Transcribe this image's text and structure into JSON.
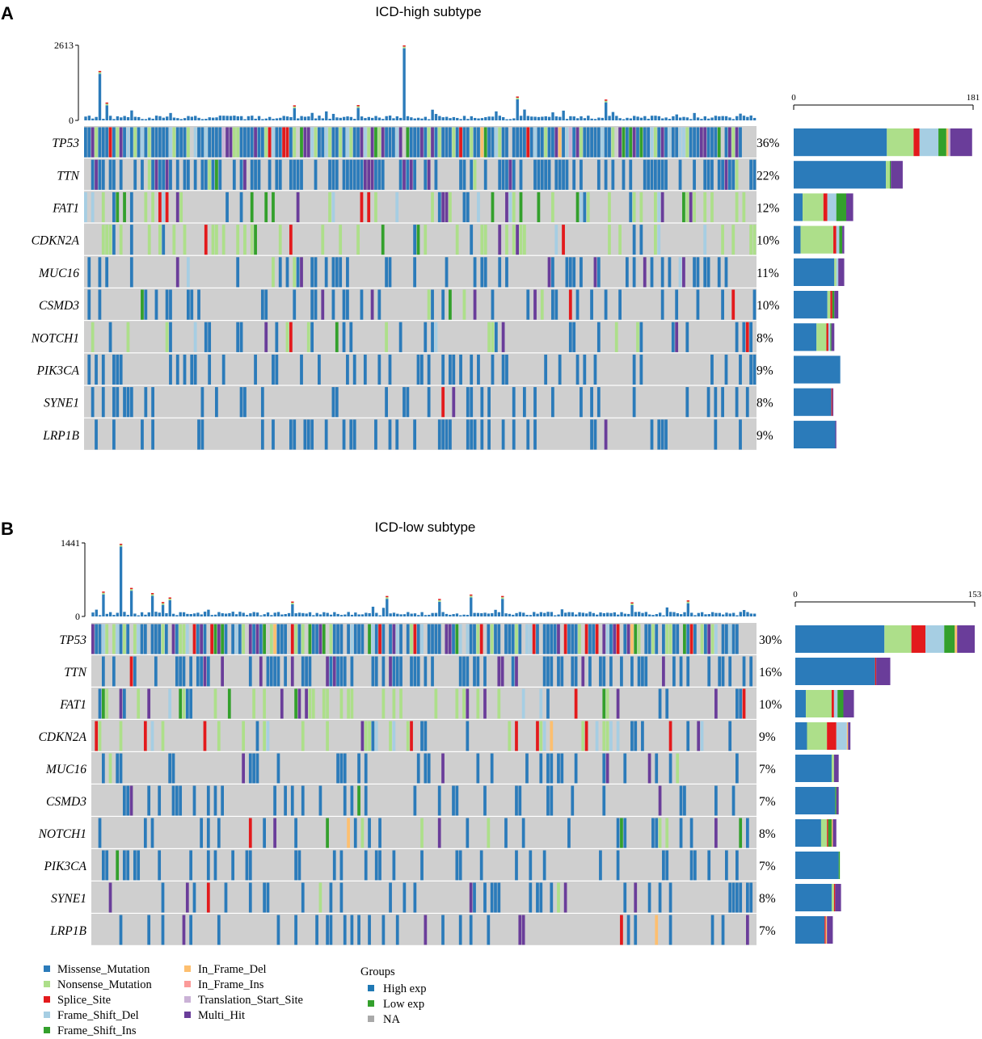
{
  "colors": {
    "Missense_Mutation": "#2b7bba",
    "Nonsense_Mutation": "#addf8a",
    "Splice_Site": "#e31a1c",
    "Frame_Shift_Del": "#a6cee3",
    "Frame_Shift_Ins": "#33a02c",
    "In_Frame_Del": "#fdbf6f",
    "In_Frame_Ins": "#fb9a99",
    "Translation_Start_Site": "#cab2d6",
    "Multi_Hit": "#6a3d9a",
    "empty": "#cfcfcf",
    "group_high": "#1f78b4",
    "group_low": "#33a02c",
    "group_na": "#a9a9a9"
  },
  "chart_data": [
    {
      "type": "oncoplot",
      "panel_label": "A",
      "title": "ICD-high subtype",
      "tmb_axis": {
        "ticks": [
          "0",
          "2613"
        ],
        "max": 2613
      },
      "right_axis": {
        "ticks": [
          "0",
          "181"
        ],
        "max": 181
      },
      "samples": 190,
      "genes": [
        "TP53",
        "TTN",
        "FAT1",
        "CDKN2A",
        "MUC16",
        "CSMD3",
        "NOTCH1",
        "PIK3CA",
        "SYNE1",
        "LRP1B"
      ],
      "percents": [
        "36%",
        "22%",
        "12%",
        "10%",
        "11%",
        "10%",
        "8%",
        "9%",
        "8%",
        "9%"
      ],
      "counts": [
        {
          "Missense_Mutation": 94,
          "Nonsense_Mutation": 27,
          "Splice_Site": 6,
          "Frame_Shift_Del": 19,
          "Frame_Shift_Ins": 8,
          "In_Frame_Del": 2,
          "Translation_Start_Site": 2,
          "Multi_Hit": 22
        },
        {
          "Missense_Mutation": 93,
          "Nonsense_Mutation": 4,
          "Frame_Shift_Ins": 1,
          "Multi_Hit": 12
        },
        {
          "Missense_Mutation": 9,
          "Nonsense_Mutation": 21,
          "Splice_Site": 4,
          "Frame_Shift_Del": 9,
          "Frame_Shift_Ins": 10,
          "Multi_Hit": 7
        },
        {
          "Missense_Mutation": 7,
          "Nonsense_Mutation": 33,
          "Splice_Site": 3,
          "Frame_Shift_Del": 3,
          "Frame_Shift_Ins": 3,
          "Multi_Hit": 2
        },
        {
          "Missense_Mutation": 41,
          "Nonsense_Mutation": 2,
          "Frame_Shift_Del": 2,
          "Multi_Hit": 6
        },
        {
          "Missense_Mutation": 34,
          "Nonsense_Mutation": 3,
          "Splice_Site": 2,
          "Frame_Shift_Ins": 2,
          "Multi_Hit": 4
        },
        {
          "Missense_Mutation": 23,
          "Nonsense_Mutation": 10,
          "Splice_Site": 2,
          "Frame_Shift_Del": 2,
          "Frame_Shift_Ins": 1,
          "Multi_Hit": 3
        },
        {
          "Missense_Mutation": 47
        },
        {
          "Missense_Mutation": 38,
          "Splice_Site": 1,
          "Multi_Hit": 1
        },
        {
          "Missense_Mutation": 42,
          "Multi_Hit": 1
        }
      ]
    },
    {
      "type": "oncoplot",
      "panel_label": "B",
      "title": "ICD-low subtype",
      "tmb_axis": {
        "ticks": [
          "0",
          "1441"
        ],
        "max": 1441
      },
      "right_axis": {
        "ticks": [
          "0",
          "153"
        ],
        "max": 153
      },
      "samples": 190,
      "genes": [
        "TP53",
        "TTN",
        "FAT1",
        "CDKN2A",
        "MUC16",
        "CSMD3",
        "NOTCH1",
        "PIK3CA",
        "SYNE1",
        "LRP1B"
      ],
      "percents": [
        "30%",
        "16%",
        "10%",
        "9%",
        "7%",
        "7%",
        "8%",
        "7%",
        "8%",
        "7%"
      ],
      "counts": [
        {
          "Missense_Mutation": 76,
          "Nonsense_Mutation": 23,
          "Splice_Site": 12,
          "Frame_Shift_Del": 16,
          "Frame_Shift_Ins": 9,
          "In_Frame_Del": 2,
          "Multi_Hit": 15
        },
        {
          "Missense_Mutation": 68,
          "Splice_Site": 1,
          "Multi_Hit": 12
        },
        {
          "Missense_Mutation": 9,
          "Nonsense_Mutation": 22,
          "Splice_Site": 2,
          "Frame_Shift_Del": 3,
          "Frame_Shift_Ins": 5,
          "Multi_Hit": 9
        },
        {
          "Missense_Mutation": 10,
          "Nonsense_Mutation": 17,
          "Splice_Site": 8,
          "Frame_Shift_Del": 9,
          "In_Frame_Del": 1,
          "Multi_Hit": 2
        },
        {
          "Missense_Mutation": 31,
          "Nonsense_Mutation": 2,
          "Multi_Hit": 4
        },
        {
          "Missense_Mutation": 34,
          "Frame_Shift_Ins": 1,
          "Multi_Hit": 2
        },
        {
          "Missense_Mutation": 22,
          "Nonsense_Mutation": 5,
          "Splice_Site": 1,
          "Frame_Shift_Ins": 3,
          "In_Frame_Del": 1,
          "Multi_Hit": 3
        },
        {
          "Missense_Mutation": 37,
          "Frame_Shift_Ins": 1
        },
        {
          "Missense_Mutation": 31,
          "Nonsense_Mutation": 2,
          "Splice_Site": 1,
          "Multi_Hit": 5
        },
        {
          "Missense_Mutation": 25,
          "In_Frame_Del": 1,
          "Splice_Site": 1,
          "Multi_Hit": 5
        }
      ]
    }
  ],
  "legend": {
    "variants": [
      "Missense_Mutation",
      "Nonsense_Mutation",
      "Splice_Site",
      "Frame_Shift_Del",
      "Frame_Shift_Ins",
      "In_Frame_Del",
      "In_Frame_Ins",
      "Translation_Start_Site",
      "Multi_Hit"
    ],
    "groups_title": "Groups",
    "groups": [
      "High exp",
      "Low exp",
      "NA"
    ]
  }
}
